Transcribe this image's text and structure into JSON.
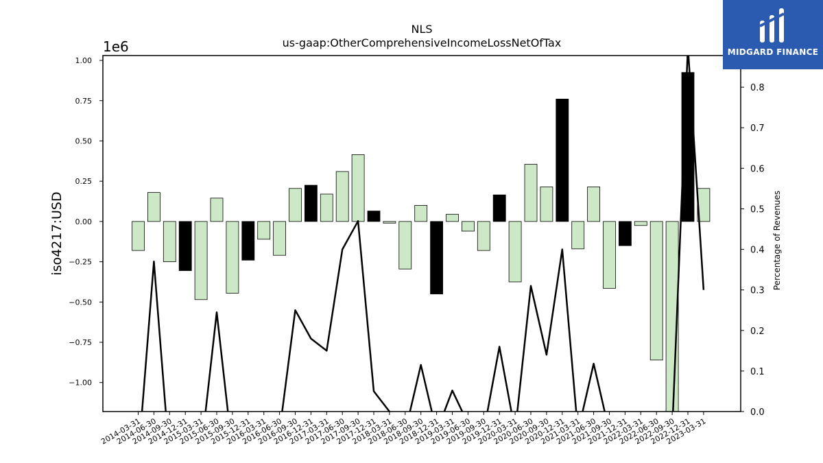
{
  "chart_data": {
    "type": "bar",
    "title": "NLS",
    "subtitle": "us-gaap:OtherComprehensiveIncomeLossNetOfTax",
    "ylabel": "iso4217:USD",
    "y2label": "Percentage of Revenues",
    "y_offset_text": "1e6",
    "ylim": [
      -1180000,
      1030000
    ],
    "y2lim": [
      0,
      0.878
    ],
    "yticks": [
      "1.00",
      "0.75",
      "0.50",
      "0.25",
      "0.00",
      "−0.25",
      "−0.50",
      "−0.75",
      "−1.00"
    ],
    "ytick_values": [
      1000000,
      750000,
      500000,
      250000,
      0,
      -250000,
      -500000,
      -750000,
      -1000000
    ],
    "y2ticks": [
      "0.8",
      "0.7",
      "0.6",
      "0.5",
      "0.4",
      "0.3",
      "0.2",
      "0.1",
      "0.0"
    ],
    "y2tick_values": [
      0.8,
      0.7,
      0.6,
      0.5,
      0.4,
      0.3,
      0.2,
      0.1,
      0.0
    ],
    "categories": [
      "2014-03-31",
      "2014-06-30",
      "2014-09-30",
      "2014-12-31",
      "2015-03-31",
      "2015-06-30",
      "2015-09-30",
      "2015-12-31",
      "2016-03-31",
      "2016-06-30",
      "2016-09-30",
      "2016-12-31",
      "2017-03-31",
      "2017-06-30",
      "2017-09-30",
      "2017-12-31",
      "2018-03-31",
      "2018-06-30",
      "2018-09-30",
      "2018-12-31",
      "2019-03-31",
      "2019-06-30",
      "2019-09-30",
      "2019-12-31",
      "2020-03-31",
      "2020-06-30",
      "2020-09-30",
      "2020-12-31",
      "2021-03-31",
      "2021-06-30",
      "2021-09-30",
      "2021-12-31",
      "2022-03-31",
      "2022-06-30",
      "2022-09-30",
      "2022-12-31",
      "2023-03-31"
    ],
    "series": [
      {
        "type": "bar",
        "values": [
          -180000,
          180000,
          -250000,
          -305000,
          -485000,
          145000,
          -445000,
          -240000,
          -110000,
          -210000,
          205000,
          225000,
          170000,
          310000,
          415000,
          65000,
          -10000,
          -295000,
          100000,
          -450000,
          45000,
          -60000,
          -180000,
          165000,
          -375000,
          355000,
          215000,
          760000,
          -170000,
          215000,
          -415000,
          -150000,
          -25000,
          -860000,
          -1190000,
          925000,
          205000
        ],
        "colors": [
          "#cde8c6",
          "#cde8c6",
          "#cde8c6",
          "#000000",
          "#cde8c6",
          "#cde8c6",
          "#cde8c6",
          "#000000",
          "#cde8c6",
          "#cde8c6",
          "#cde8c6",
          "#000000",
          "#cde8c6",
          "#cde8c6",
          "#cde8c6",
          "#000000",
          "#cde8c6",
          "#cde8c6",
          "#cde8c6",
          "#000000",
          "#cde8c6",
          "#cde8c6",
          "#cde8c6",
          "#000000",
          "#cde8c6",
          "#cde8c6",
          "#cde8c6",
          "#000000",
          "#cde8c6",
          "#cde8c6",
          "#cde8c6",
          "#000000",
          "#cde8c6",
          "#cde8c6",
          "#cde8c6",
          "#000000",
          "#cde8c6"
        ]
      },
      {
        "type": "line",
        "axis": "y2",
        "values": [
          -0.12,
          0.37,
          -0.12,
          null,
          -0.1,
          0.245,
          -0.1,
          null,
          null,
          -0.05,
          0.25,
          0.18,
          0.15,
          0.4,
          0.47,
          0.05,
          0.0,
          -0.05,
          0.115,
          -0.05,
          0.052,
          -0.03,
          -0.05,
          0.16,
          -0.05,
          0.31,
          0.14,
          0.4,
          -0.05,
          0.118,
          -0.05,
          null,
          null,
          null,
          -0.05,
          0.9,
          0.3
        ]
      }
    ],
    "bar_colors": {
      "positive_quarter": "#cde8c6",
      "year_end": "#000000"
    },
    "line_color": "#000000",
    "grid": false,
    "legend": "none"
  },
  "logo": {
    "text": "MIDGARD FINANCE",
    "background": "#2a5bb0"
  }
}
